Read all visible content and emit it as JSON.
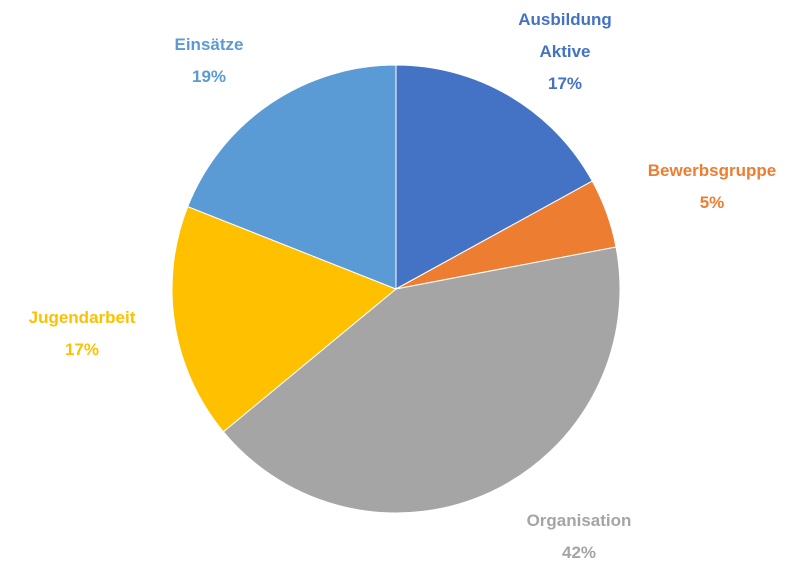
{
  "chart_data": {
    "type": "pie",
    "categories": [
      "Ausbildung Aktive",
      "Bewerbsgruppe",
      "Organisation",
      "Jugendarbeit",
      "Einsätze"
    ],
    "values": [
      17,
      5,
      42,
      17,
      19
    ],
    "value_labels": [
      "17%",
      "5%",
      "42%",
      "17%",
      "19%"
    ],
    "colors": [
      "#4472c4",
      "#ed7d31",
      "#a5a5a5",
      "#ffc000",
      "#5b9bd5"
    ]
  }
}
